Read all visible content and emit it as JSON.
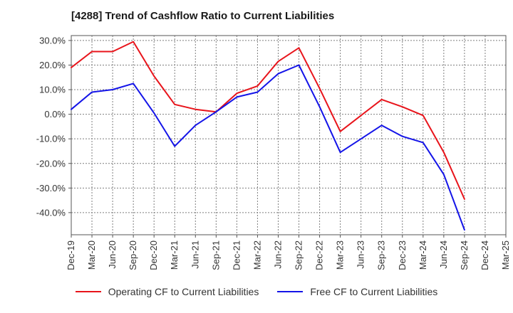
{
  "chart_data": {
    "type": "line",
    "title": "[4288]  Trend of Cashflow Ratio to Current Liabilities",
    "xlabel": "",
    "ylabel": "",
    "categories": [
      "Dec-19",
      "Mar-20",
      "Jun-20",
      "Sep-20",
      "Dec-20",
      "Mar-21",
      "Jun-21",
      "Sep-21",
      "Dec-21",
      "Mar-22",
      "Jun-22",
      "Sep-22",
      "Dec-22",
      "Mar-23",
      "Jun-23",
      "Sep-23",
      "Dec-23",
      "Mar-24",
      "Jun-24",
      "Sep-24",
      "Dec-24",
      "Mar-25"
    ],
    "yticks": [
      30,
      20,
      10,
      0,
      -10,
      -20,
      -30,
      -40
    ],
    "ytick_labels": [
      "30.0%",
      "20.0%",
      "10.0%",
      "0.0%",
      "-10.0%",
      "-20.0%",
      "-30.0%",
      "-40.0%"
    ],
    "ylim": [
      -49,
      32
    ],
    "grid": true,
    "legend_position": "bottom",
    "series": [
      {
        "name": "Operating CF to Current Liabilities",
        "color": "#e8141b",
        "values": [
          19,
          25.5,
          25.5,
          29.5,
          15.5,
          4,
          2,
          1,
          8.5,
          11.5,
          21.5,
          27,
          10.5,
          -7,
          -0.5,
          6,
          3,
          -0.5,
          -15.5,
          -34.5,
          null,
          null
        ]
      },
      {
        "name": "Free CF to Current Liabilities",
        "color": "#1414e8",
        "values": [
          2,
          9,
          10,
          12.5,
          0.5,
          -13,
          -4.5,
          1,
          7,
          9,
          16.5,
          20,
          3,
          -15.5,
          -10,
          -4.5,
          -9,
          -11.5,
          -24.5,
          -47,
          null,
          null
        ]
      }
    ]
  }
}
